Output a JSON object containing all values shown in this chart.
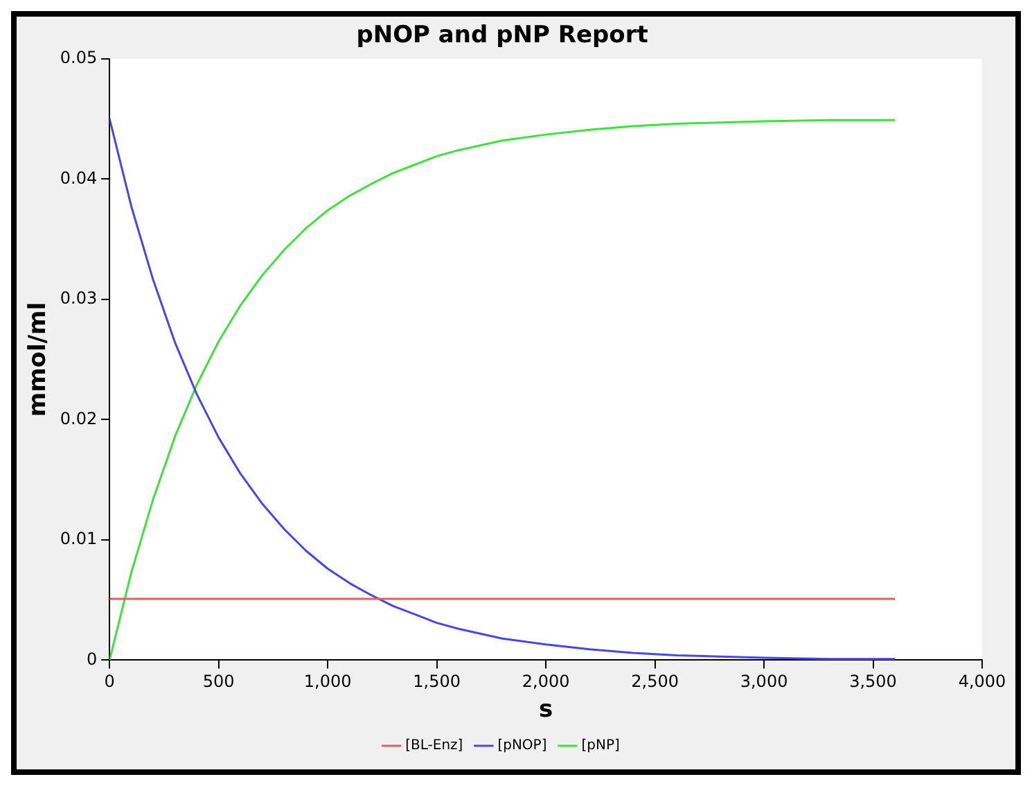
{
  "chart_data": {
    "type": "line",
    "title": "pNOP and pNP Report",
    "xlabel": "s",
    "ylabel": "mmol/ml",
    "x": [
      0,
      100,
      200,
      300,
      400,
      500,
      600,
      700,
      800,
      900,
      1000,
      1100,
      1200,
      1300,
      1400,
      1500,
      1600,
      1800,
      2000,
      2200,
      2400,
      2600,
      2800,
      3000,
      3300,
      3600
    ],
    "series": [
      {
        "name": "[BL-Enz]",
        "color": "#e06060",
        "values": [
          0.0051,
          0.0051,
          0.0051,
          0.0051,
          0.0051,
          0.0051,
          0.0051,
          0.0051,
          0.0051,
          0.0051,
          0.0051,
          0.0051,
          0.0051,
          0.0051,
          0.0051,
          0.0051,
          0.0051,
          0.0051,
          0.0051,
          0.0051,
          0.0051,
          0.0051,
          0.0051,
          0.0051,
          0.0051,
          0.0051
        ]
      },
      {
        "name": "[pNOP]",
        "color": "#4848e0",
        "values": [
          0.045,
          0.0377,
          0.0316,
          0.0264,
          0.0221,
          0.0185,
          0.0155,
          0.013,
          0.0109,
          0.0091,
          0.0076,
          0.0064,
          0.0054,
          0.0045,
          0.0038,
          0.0031,
          0.0026,
          0.0018,
          0.0013,
          0.0009,
          0.0006,
          0.0004,
          0.0003,
          0.0002,
          0.0001,
          0.0001
        ]
      },
      {
        "name": "[pNP]",
        "color": "#40e040",
        "values": [
          0,
          0.0073,
          0.0134,
          0.0186,
          0.0229,
          0.0265,
          0.0295,
          0.032,
          0.0341,
          0.0359,
          0.0374,
          0.0386,
          0.0396,
          0.0405,
          0.0412,
          0.0419,
          0.0424,
          0.0432,
          0.0437,
          0.0441,
          0.0444,
          0.0446,
          0.0447,
          0.0448,
          0.0449,
          0.0449
        ]
      }
    ],
    "xlim": [
      0,
      4000
    ],
    "xticks": [
      0,
      500,
      {
        "value": 1000,
        "label": "1,000"
      },
      {
        "value": 1500,
        "label": "1,500"
      },
      {
        "value": 2000,
        "label": "2,000"
      },
      {
        "value": 2500,
        "label": "2,500"
      },
      {
        "value": 3000,
        "label": "3,000"
      },
      {
        "value": 3500,
        "label": "3,500"
      },
      {
        "value": 4000,
        "label": "4,000"
      }
    ],
    "ylim": [
      0,
      0.05
    ],
    "yticks": [
      0,
      0.01,
      0.02,
      0.03,
      0.04,
      0.05
    ],
    "grid": false,
    "legend": "bottom",
    "marker": "none",
    "line_style": "solid"
  }
}
